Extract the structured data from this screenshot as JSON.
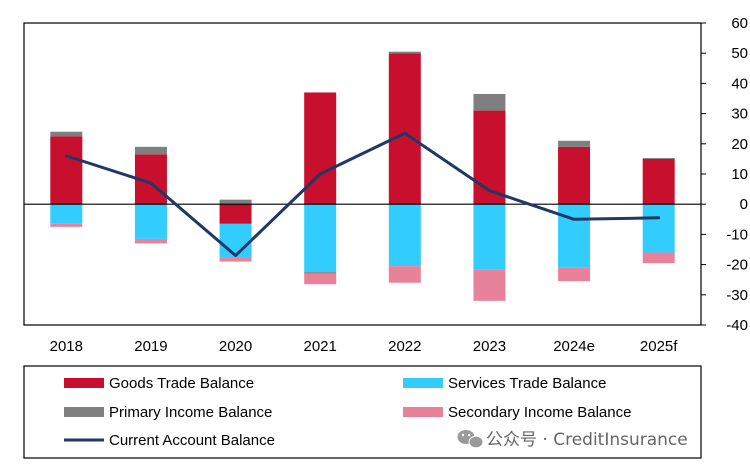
{
  "chart_data": {
    "type": "bar",
    "stacked": true,
    "categories": [
      "2018",
      "2019",
      "2020",
      "2021",
      "2022",
      "2023",
      "2024e",
      "2025f"
    ],
    "ylim": [
      -40,
      60
    ],
    "yticks": [
      60,
      50,
      40,
      30,
      20,
      10,
      0,
      -10,
      -20,
      -30,
      -40
    ],
    "y_axis_side": "right",
    "grid": false,
    "legend_position": "bottom",
    "series": [
      {
        "name": "Goods Trade Balance",
        "color": "#C8102E",
        "kind": "bar",
        "values": [
          22.5,
          16.5,
          -6.5,
          37,
          50,
          31,
          19,
          15
        ]
      },
      {
        "name": "Services Trade Balance",
        "color": "#33CCFF",
        "kind": "bar",
        "values": [
          -6.5,
          -11.5,
          -11,
          -22.5,
          -20.5,
          -21.5,
          -21,
          -16
        ]
      },
      {
        "name": "Primary Income Balance",
        "color": "#7F7F7F",
        "kind": "bar",
        "values": [
          1.5,
          2.5,
          1.5,
          -0.5,
          0.5,
          5.5,
          2,
          0.3
        ]
      },
      {
        "name": "Secondary Income Balance",
        "color": "#E8829A",
        "kind": "bar",
        "values": [
          -1,
          -1.5,
          -1.5,
          -3.5,
          -5.5,
          -10.5,
          -4.5,
          -3.5
        ]
      },
      {
        "name": "Current Account Balance",
        "color": "#1F3864",
        "kind": "line",
        "values": [
          16,
          7,
          -17,
          10,
          23.5,
          4.5,
          -5,
          -4.5
        ]
      }
    ]
  },
  "watermark": {
    "text": "公众号 · CreditInsurance"
  }
}
